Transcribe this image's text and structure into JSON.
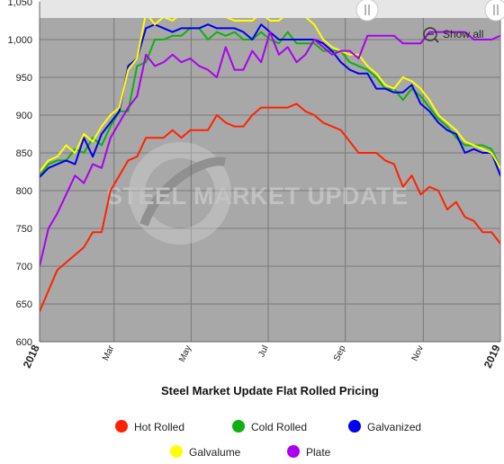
{
  "chart_data": {
    "type": "line",
    "title": "Steel Market Update Flat Rolled Pricing",
    "xlabel": "",
    "ylabel": "",
    "ylim": [
      600,
      1050
    ],
    "y_ticks": [
      600,
      650,
      700,
      750,
      800,
      850,
      900,
      950,
      1000,
      1050
    ],
    "y_tick_labels": [
      "600",
      "650",
      "700",
      "750",
      "800",
      "850",
      "900",
      "950",
      "1,000",
      "1,050"
    ],
    "x_domain": [
      0,
      52
    ],
    "x_ticks": [
      {
        "x": 0,
        "label": "2018",
        "bold": true
      },
      {
        "x": 8.4,
        "label": "Mar",
        "bold": false
      },
      {
        "x": 17.1,
        "label": "May",
        "bold": false
      },
      {
        "x": 25.8,
        "label": "Jul",
        "bold": false
      },
      {
        "x": 34.5,
        "label": "Sep",
        "bold": false
      },
      {
        "x": 43.3,
        "label": "Nov",
        "bold": false
      },
      {
        "x": 52,
        "label": "2019",
        "bold": true
      }
    ],
    "grid": true,
    "legend_position": "bottom",
    "show_all_label": "Show all",
    "watermark": "STEEL MARKET UPDATE",
    "colors": {
      "plot_background": "#a8a8a8",
      "page_background": "#ffffff",
      "navigator_bar": "#e6e6e6"
    },
    "series": [
      {
        "name": "Hot Rolled",
        "color": "#ff2200",
        "x": [
          0,
          2,
          5,
          6,
          7,
          8,
          9,
          10,
          11,
          12,
          13,
          14,
          15,
          16,
          17,
          18,
          19,
          20,
          21,
          22,
          23,
          24,
          25,
          26,
          27,
          28,
          29,
          30,
          31,
          32,
          33,
          34,
          35,
          36,
          37,
          38,
          39,
          40,
          41,
          42,
          43,
          44,
          45,
          46,
          47,
          48,
          49,
          50,
          51,
          52
        ],
        "values": [
          640,
          695,
          725,
          745,
          745,
          800,
          820,
          840,
          845,
          870,
          870,
          870,
          880,
          870,
          880,
          880,
          880,
          900,
          890,
          885,
          885,
          900,
          910,
          910,
          910,
          910,
          915,
          905,
          900,
          890,
          885,
          880,
          865,
          850,
          850,
          850,
          840,
          835,
          805,
          820,
          795,
          805,
          800,
          775,
          785,
          765,
          760,
          745,
          745,
          730
        ]
      },
      {
        "name": "Cold Rolled",
        "color": "#10b010",
        "x": [
          0,
          1,
          2,
          3,
          4,
          5,
          6,
          7,
          8,
          9,
          10,
          11,
          12,
          13,
          14,
          15,
          16,
          17,
          18,
          19,
          20,
          21,
          22,
          23,
          24,
          25,
          26,
          27,
          28,
          29,
          30,
          31,
          32,
          33,
          34,
          35,
          36,
          37,
          38,
          39,
          40,
          41,
          42,
          43,
          44,
          45,
          46,
          47,
          48,
          49,
          50,
          51,
          52
        ],
        "values": [
          820,
          835,
          840,
          840,
          855,
          850,
          870,
          860,
          885,
          905,
          905,
          965,
          970,
          1000,
          1000,
          1005,
          1005,
          1015,
          1015,
          1000,
          1010,
          1005,
          1010,
          1000,
          1000,
          1010,
          1000,
          995,
          1010,
          995,
          995,
          995,
          985,
          985,
          985,
          970,
          965,
          960,
          950,
          935,
          935,
          920,
          935,
          925,
          910,
          895,
          885,
          870,
          860,
          860,
          860,
          855,
          830
        ]
      },
      {
        "name": "Galvanized",
        "color": "#0000ee",
        "x": [
          0,
          1,
          2,
          3,
          4,
          5,
          6,
          7,
          8,
          9,
          10,
          11,
          12,
          13,
          14,
          15,
          16,
          17,
          18,
          19,
          20,
          21,
          22,
          23,
          24,
          25,
          26,
          27,
          28,
          29,
          30,
          31,
          32,
          33,
          34,
          35,
          36,
          37,
          38,
          39,
          40,
          41,
          42,
          43,
          44,
          45,
          46,
          47,
          48,
          49,
          50,
          51,
          52
        ],
        "values": [
          818,
          830,
          835,
          840,
          835,
          870,
          845,
          875,
          890,
          905,
          965,
          975,
          1015,
          1020,
          1015,
          1010,
          1015,
          1015,
          1015,
          1020,
          1015,
          1015,
          1015,
          1010,
          1000,
          1020,
          1010,
          1000,
          1000,
          1000,
          1000,
          1000,
          995,
          985,
          970,
          960,
          955,
          955,
          935,
          935,
          930,
          930,
          940,
          915,
          905,
          890,
          880,
          875,
          850,
          855,
          850,
          850,
          820
        ]
      },
      {
        "name": "Galvalume",
        "color": "#ffff00",
        "x": [
          0,
          1,
          2,
          3,
          4,
          5,
          6,
          7,
          8,
          9,
          10,
          11,
          12,
          13,
          14,
          15,
          16,
          17,
          18,
          19,
          20,
          21,
          22,
          23,
          24,
          25,
          26,
          27,
          28,
          29,
          30,
          31,
          32,
          33,
          34,
          35,
          36,
          37,
          38,
          39,
          40,
          41,
          42,
          43,
          44,
          45,
          46,
          47,
          48,
          49,
          50,
          51,
          52
        ],
        "values": [
          825,
          840,
          845,
          860,
          850,
          875,
          865,
          885,
          900,
          910,
          960,
          975,
          1035,
          1020,
          1030,
          1025,
          1035,
          1030,
          1035,
          1030,
          1030,
          1030,
          1025,
          1025,
          1025,
          1035,
          1025,
          1025,
          1035,
          1035,
          1030,
          1020,
          1000,
          990,
          985,
          980,
          980,
          965,
          955,
          940,
          935,
          950,
          945,
          935,
          920,
          900,
          890,
          880,
          865,
          860,
          855,
          850,
          830
        ]
      },
      {
        "name": "Plate",
        "color": "#aa00ee",
        "x": [
          0,
          1,
          2,
          3,
          4,
          5,
          6,
          7,
          8,
          9,
          10,
          11,
          12,
          13,
          14,
          15,
          16,
          17,
          18,
          19,
          20,
          21,
          22,
          23,
          24,
          25,
          26,
          27,
          28,
          29,
          30,
          31,
          32,
          33,
          34,
          35,
          36,
          37,
          38,
          39,
          40,
          41,
          42,
          43,
          44,
          45,
          46,
          47,
          48,
          49,
          50,
          51,
          52
        ],
        "values": [
          700,
          750,
          770,
          795,
          820,
          810,
          835,
          830,
          870,
          890,
          910,
          925,
          980,
          965,
          970,
          980,
          970,
          975,
          965,
          960,
          950,
          990,
          960,
          960,
          985,
          970,
          1010,
          980,
          990,
          970,
          980,
          1000,
          990,
          980,
          985,
          985,
          975,
          1005,
          1005,
          1005,
          1005,
          995,
          995,
          995,
          1010,
          1010,
          1010,
          1010,
          1010,
          1000,
          1000,
          1000,
          1005
        ]
      }
    ]
  }
}
